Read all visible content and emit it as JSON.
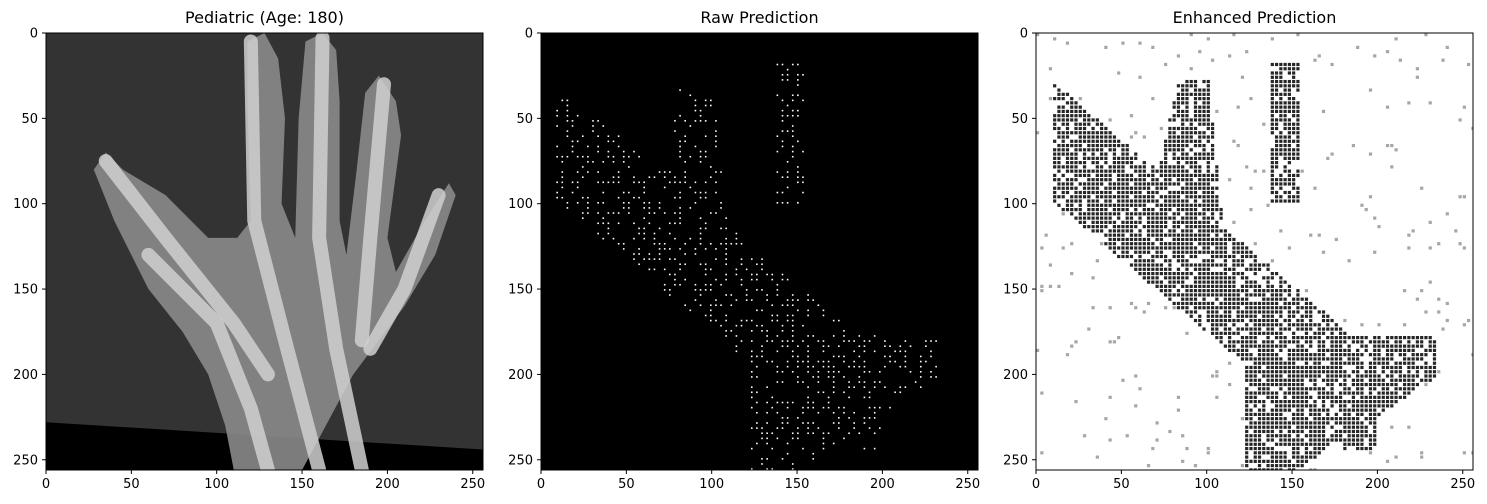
{
  "figure": {
    "panels": [
      {
        "title": "Pediatric (Age: 180)",
        "kind": "xray",
        "x_ticks": [
          "0",
          "50",
          "100",
          "150",
          "200",
          "250"
        ],
        "y_ticks": [
          "0",
          "50",
          "100",
          "150",
          "200",
          "250"
        ]
      },
      {
        "title": "Raw Prediction",
        "kind": "raw",
        "x_ticks": [
          "0",
          "50",
          "100",
          "150",
          "200",
          "250"
        ],
        "y_ticks": [
          "0",
          "50",
          "100",
          "150",
          "200",
          "250"
        ]
      },
      {
        "title": "Enhanced Prediction",
        "kind": "enhanced",
        "x_ticks": [
          "0",
          "50",
          "100",
          "150",
          "200",
          "250"
        ],
        "y_ticks": [
          "0",
          "50",
          "100",
          "150",
          "200",
          "250"
        ]
      }
    ],
    "axis_range": [
      0,
      256
    ],
    "tick_values": [
      0,
      50,
      100,
      150,
      200,
      250
    ],
    "colors": {
      "xray_background": "#333333",
      "xray_bone": "#d0d0d0",
      "raw_background": "#000000",
      "raw_dots": "#ffffff",
      "enhanced_background": "#ffffff",
      "enhanced_dots": "#000000"
    }
  }
}
